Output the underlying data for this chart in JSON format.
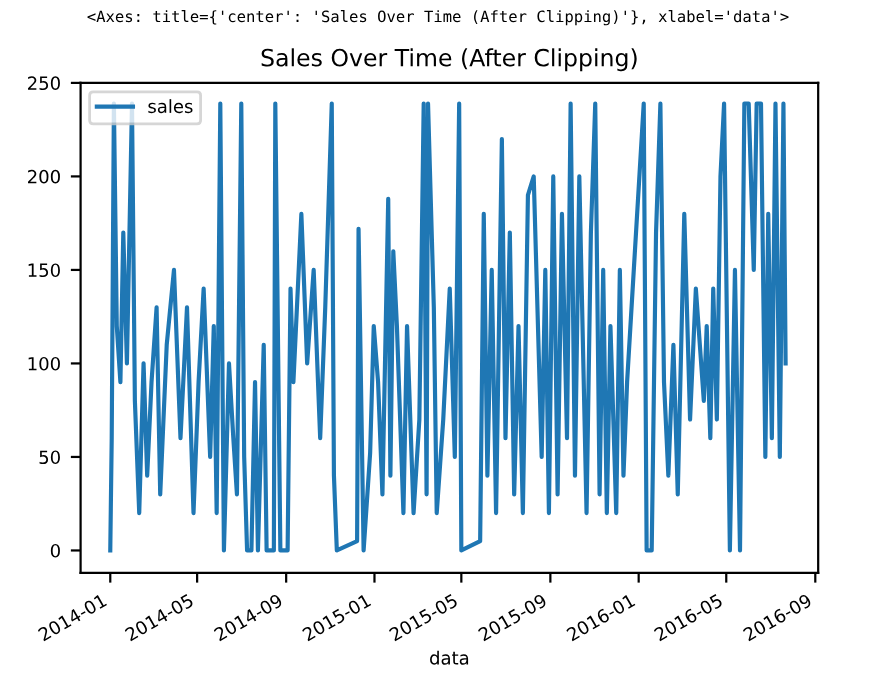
{
  "chart_data": {
    "type": "line",
    "title": "Sales Over Time (After Clipping)",
    "xlabel": "data",
    "annotations": [
      "<Axes: title={'center': 'Sales Over Time (After Clipping)'}, xlabel='data'>"
    ],
    "legend": "top left",
    "grid": false,
    "marker": "none",
    "line_style": "solid",
    "xlim": [
      "2013-11-21",
      "2016-09-05"
    ],
    "xticks": [
      "2014-01",
      "2014-05",
      "2014-09",
      "2015-01",
      "2015-05",
      "2015-09",
      "2016-01",
      "2016-05",
      "2016-09"
    ],
    "ylim": [
      -12,
      250
    ],
    "yticks": [
      0,
      50,
      100,
      150,
      200,
      250
    ],
    "series": [
      {
        "name": "sales",
        "color": "#1f77b4",
        "x": [
          "2014-01-01",
          "2014-01-03",
          "2014-01-06",
          "2014-01-10",
          "2014-01-15",
          "2014-01-19",
          "2014-01-24",
          "2014-01-31",
          "2014-02-04",
          "2014-02-10",
          "2014-02-16",
          "2014-02-21",
          "2014-02-27",
          "2014-03-06",
          "2014-03-11",
          "2014-03-20",
          "2014-03-30",
          "2014-04-08",
          "2014-04-17",
          "2014-04-26",
          "2014-05-03",
          "2014-05-10",
          "2014-05-19",
          "2014-05-24",
          "2014-05-28",
          "2014-06-02",
          "2014-06-07",
          "2014-06-14",
          "2014-06-20",
          "2014-06-25",
          "2014-07-01",
          "2014-07-05",
          "2014-07-09",
          "2014-07-15",
          "2014-07-20",
          "2014-07-24",
          "2014-08-01",
          "2014-08-05",
          "2014-08-15",
          "2014-08-17",
          "2014-08-24",
          "2014-09-03",
          "2014-09-07",
          "2014-09-11",
          "2014-09-22",
          "2014-09-30",
          "2014-10-09",
          "2014-10-18",
          "2014-10-25",
          "2014-11-03",
          "2014-11-06",
          "2014-11-10",
          "2014-12-08",
          "2014-12-10",
          "2014-12-17",
          "2014-12-26",
          "2014-12-31",
          "2015-01-06",
          "2015-01-12",
          "2015-01-20",
          "2015-01-23",
          "2015-01-27",
          "2015-02-01",
          "2015-02-10",
          "2015-02-15",
          "2015-02-24",
          "2015-03-04",
          "2015-03-10",
          "2015-03-14",
          "2015-03-16",
          "2015-03-24",
          "2015-03-28",
          "2015-04-06",
          "2015-04-15",
          "2015-04-22",
          "2015-04-28",
          "2015-05-01",
          "2015-05-27",
          "2015-06-01",
          "2015-06-06",
          "2015-06-12",
          "2015-06-18",
          "2015-06-26",
          "2015-07-01",
          "2015-07-07",
          "2015-07-13",
          "2015-07-19",
          "2015-07-25",
          "2015-08-01",
          "2015-08-09",
          "2015-08-20",
          "2015-08-25",
          "2015-08-30",
          "2015-09-05",
          "2015-09-11",
          "2015-09-17",
          "2015-09-24",
          "2015-09-29",
          "2015-10-05",
          "2015-10-11",
          "2015-10-21",
          "2015-10-27",
          "2015-11-02",
          "2015-11-08",
          "2015-11-13",
          "2015-11-18",
          "2015-11-23",
          "2015-12-01",
          "2015-12-06",
          "2015-12-11",
          "2015-12-16",
          "2016-01-08",
          "2016-01-12",
          "2016-01-19",
          "2016-01-25",
          "2016-01-31",
          "2016-02-05",
          "2016-02-11",
          "2016-02-18",
          "2016-02-24",
          "2016-03-04",
          "2016-03-12",
          "2016-03-20",
          "2016-03-31",
          "2016-04-04",
          "2016-04-09",
          "2016-04-13",
          "2016-04-18",
          "2016-04-23",
          "2016-04-28",
          "2016-05-06",
          "2016-05-13",
          "2016-05-20",
          "2016-05-26",
          "2016-06-01",
          "2016-06-08",
          "2016-06-12",
          "2016-06-18",
          "2016-06-24",
          "2016-06-28",
          "2016-07-03",
          "2016-07-08",
          "2016-07-14",
          "2016-07-19",
          "2016-07-22"
        ],
        "values": [
          0,
          60,
          239,
          120,
          90,
          170,
          100,
          239,
          80,
          20,
          100,
          40,
          90,
          130,
          30,
          110,
          150,
          60,
          130,
          20,
          90,
          140,
          50,
          120,
          20,
          239,
          0,
          100,
          60,
          30,
          239,
          50,
          0,
          0,
          90,
          0,
          110,
          0,
          0,
          239,
          0,
          0,
          140,
          90,
          180,
          100,
          150,
          60,
          130,
          239,
          40,
          0,
          5,
          172,
          0,
          52,
          120,
          90,
          30,
          188,
          40,
          160,
          120,
          20,
          120,
          20,
          70,
          239,
          30,
          239,
          130,
          20,
          70,
          140,
          50,
          239,
          0,
          5,
          180,
          40,
          150,
          20,
          220,
          60,
          170,
          30,
          120,
          20,
          190,
          200,
          50,
          150,
          20,
          200,
          30,
          180,
          60,
          239,
          40,
          200,
          20,
          170,
          239,
          30,
          150,
          20,
          120,
          20,
          150,
          40,
          90,
          239,
          0,
          0,
          170,
          239,
          90,
          40,
          110,
          30,
          180,
          70,
          140,
          80,
          120,
          60,
          140,
          70,
          200,
          239,
          0,
          150,
          0,
          239,
          239,
          150,
          239,
          239,
          50,
          180,
          60,
          239,
          50,
          239,
          100
        ]
      }
    ]
  }
}
